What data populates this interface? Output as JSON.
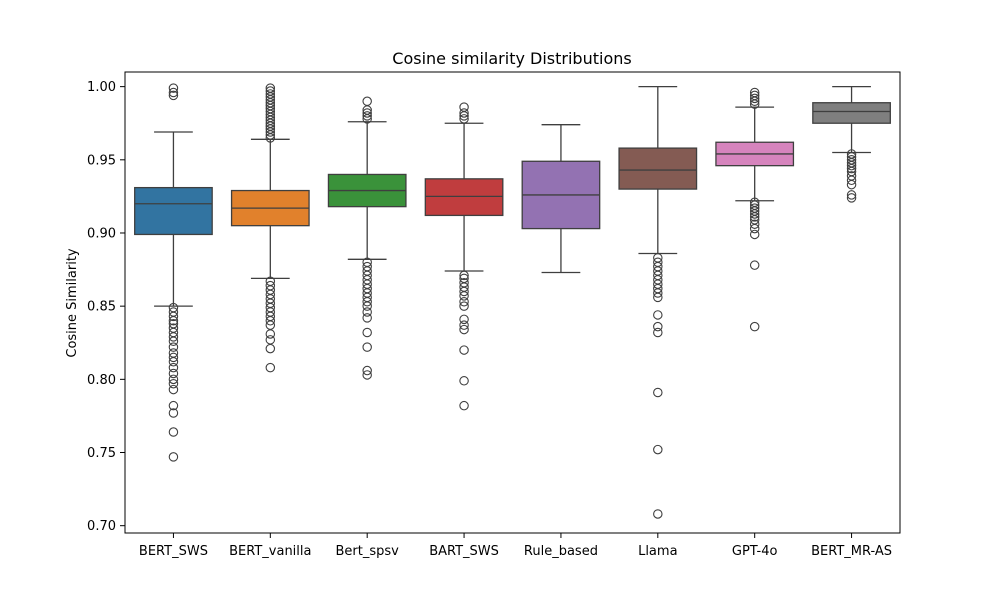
{
  "chart_data": {
    "type": "box",
    "title": "Cosine similarity Distributions",
    "xlabel": "",
    "ylabel": "Cosine Similarity",
    "ylim": [
      0.695,
      1.01
    ],
    "yticks": [
      0.7,
      0.75,
      0.8,
      0.85,
      0.9,
      0.95,
      1.0
    ],
    "ytick_labels": [
      "0.70",
      "0.75",
      "0.80",
      "0.85",
      "0.90",
      "0.95",
      "1.00"
    ],
    "grid": false,
    "legend": "none",
    "categories": [
      "BERT_SWS",
      "BERT_vanilla",
      "Bert_spsv",
      "BART_SWS",
      "Rule_based",
      "Llama",
      "GPT-4o",
      "BERT_MR-AS"
    ],
    "boxes": [
      {
        "name": "BERT_SWS",
        "color": "#3274a1",
        "whisker_low": 0.85,
        "q1": 0.899,
        "median": 0.92,
        "q3": 0.931,
        "whisker_high": 0.969,
        "outliers": [
          0.999,
          0.996,
          0.994,
          0.849,
          0.846,
          0.843,
          0.84,
          0.838,
          0.835,
          0.832,
          0.829,
          0.826,
          0.822,
          0.818,
          0.815,
          0.812,
          0.808,
          0.804,
          0.8,
          0.797,
          0.793,
          0.782,
          0.777,
          0.764,
          0.747
        ]
      },
      {
        "name": "BERT_vanilla",
        "color": "#e1812c",
        "whisker_low": 0.869,
        "q1": 0.905,
        "median": 0.917,
        "q3": 0.929,
        "whisker_high": 0.964,
        "outliers": [
          0.999,
          0.997,
          0.995,
          0.993,
          0.991,
          0.989,
          0.987,
          0.985,
          0.983,
          0.981,
          0.979,
          0.977,
          0.975,
          0.973,
          0.971,
          0.969,
          0.967,
          0.965,
          0.867,
          0.864,
          0.861,
          0.858,
          0.855,
          0.852,
          0.849,
          0.846,
          0.843,
          0.84,
          0.837,
          0.831,
          0.827,
          0.821,
          0.808
        ]
      },
      {
        "name": "Bert_spsv",
        "color": "#3a923a",
        "whisker_low": 0.882,
        "q1": 0.918,
        "median": 0.929,
        "q3": 0.94,
        "whisker_high": 0.976,
        "outliers": [
          0.99,
          0.984,
          0.982,
          0.98,
          0.978,
          0.88,
          0.877,
          0.874,
          0.871,
          0.868,
          0.865,
          0.862,
          0.859,
          0.856,
          0.853,
          0.85,
          0.846,
          0.842,
          0.832,
          0.822,
          0.806,
          0.803
        ]
      },
      {
        "name": "BART_SWS",
        "color": "#c03d3e",
        "whisker_low": 0.874,
        "q1": 0.912,
        "median": 0.925,
        "q3": 0.937,
        "whisker_high": 0.975,
        "outliers": [
          0.986,
          0.982,
          0.98,
          0.978,
          0.871,
          0.869,
          0.866,
          0.863,
          0.86,
          0.857,
          0.853,
          0.85,
          0.841,
          0.837,
          0.834,
          0.82,
          0.799,
          0.782
        ]
      },
      {
        "name": "Rule_based",
        "color": "#9372b2",
        "whisker_low": 0.873,
        "q1": 0.903,
        "median": 0.926,
        "q3": 0.949,
        "whisker_high": 0.974,
        "outliers": []
      },
      {
        "name": "Llama",
        "color": "#845b53",
        "whisker_low": 0.886,
        "q1": 0.93,
        "median": 0.943,
        "q3": 0.958,
        "whisker_high": 1.0,
        "outliers": [
          0.883,
          0.88,
          0.877,
          0.874,
          0.871,
          0.868,
          0.865,
          0.862,
          0.859,
          0.856,
          0.844,
          0.836,
          0.832,
          0.791,
          0.752,
          0.708
        ]
      },
      {
        "name": "GPT-4o",
        "color": "#d684bd",
        "whisker_low": 0.922,
        "q1": 0.946,
        "median": 0.954,
        "q3": 0.962,
        "whisker_high": 0.986,
        "outliers": [
          0.996,
          0.994,
          0.992,
          0.99,
          0.988,
          0.921,
          0.919,
          0.917,
          0.915,
          0.913,
          0.911,
          0.909,
          0.906,
          0.903,
          0.899,
          0.878,
          0.836
        ]
      },
      {
        "name": "BERT_MR-AS",
        "color": "#7f7f7f",
        "whisker_low": 0.955,
        "q1": 0.975,
        "median": 0.983,
        "q3": 0.989,
        "whisker_high": 1.0,
        "outliers": [
          0.954,
          0.952,
          0.95,
          0.948,
          0.946,
          0.944,
          0.942,
          0.939,
          0.936,
          0.933,
          0.926,
          0.924
        ]
      }
    ]
  }
}
